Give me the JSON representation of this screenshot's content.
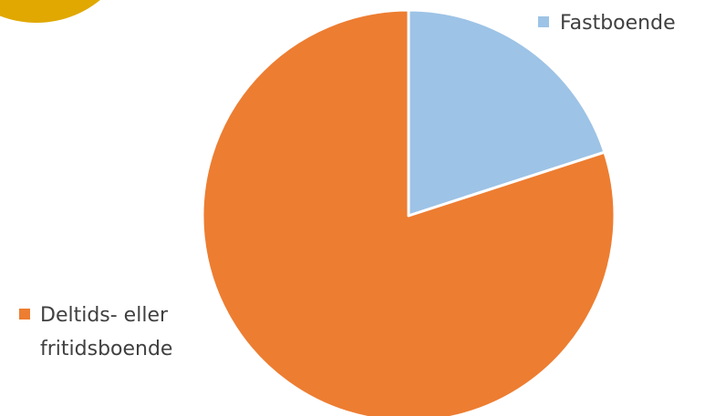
{
  "chart_data": {
    "type": "pie",
    "categories": [
      "Fastboende",
      "Deltids- eller fritidsboende"
    ],
    "values": [
      20,
      80
    ],
    "colors": [
      "#9DC3E6",
      "#ED7D31"
    ],
    "legend": {
      "entries": [
        {
          "lines": [
            "Fastboende"
          ],
          "color": "#9DC3E6"
        },
        {
          "lines": [
            "Deltids- eller",
            "fritidsboende"
          ],
          "color": "#ED7D31"
        }
      ]
    }
  },
  "decoration": {
    "corner_circle_color": "#E0A800"
  }
}
